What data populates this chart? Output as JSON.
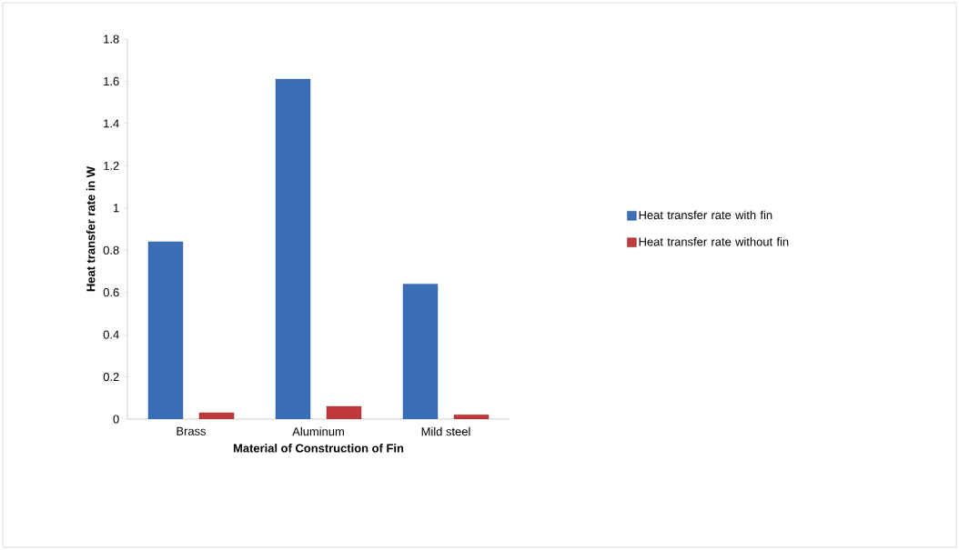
{
  "chart_data": {
    "type": "bar",
    "xlabel": "Material of Construction of Fin",
    "ylabel": "Heat transfer rate in W",
    "categories": [
      "Brass",
      "Aluminum",
      "Mild steel"
    ],
    "series": [
      {
        "name": "Heat transfer rate with fin",
        "color": "#3a6fb8",
        "values": [
          0.84,
          1.61,
          0.64
        ]
      },
      {
        "name": "Heat transfer rate without fin",
        "color": "#c0393b",
        "values": [
          0.03,
          0.06,
          0.02
        ]
      }
    ],
    "ylim": [
      0,
      1.8
    ],
    "yticks": [
      0,
      0.2,
      0.4,
      0.6,
      0.8,
      1,
      1.2,
      1.4,
      1.6,
      1.8
    ],
    "legend": "right",
    "grid": false
  }
}
